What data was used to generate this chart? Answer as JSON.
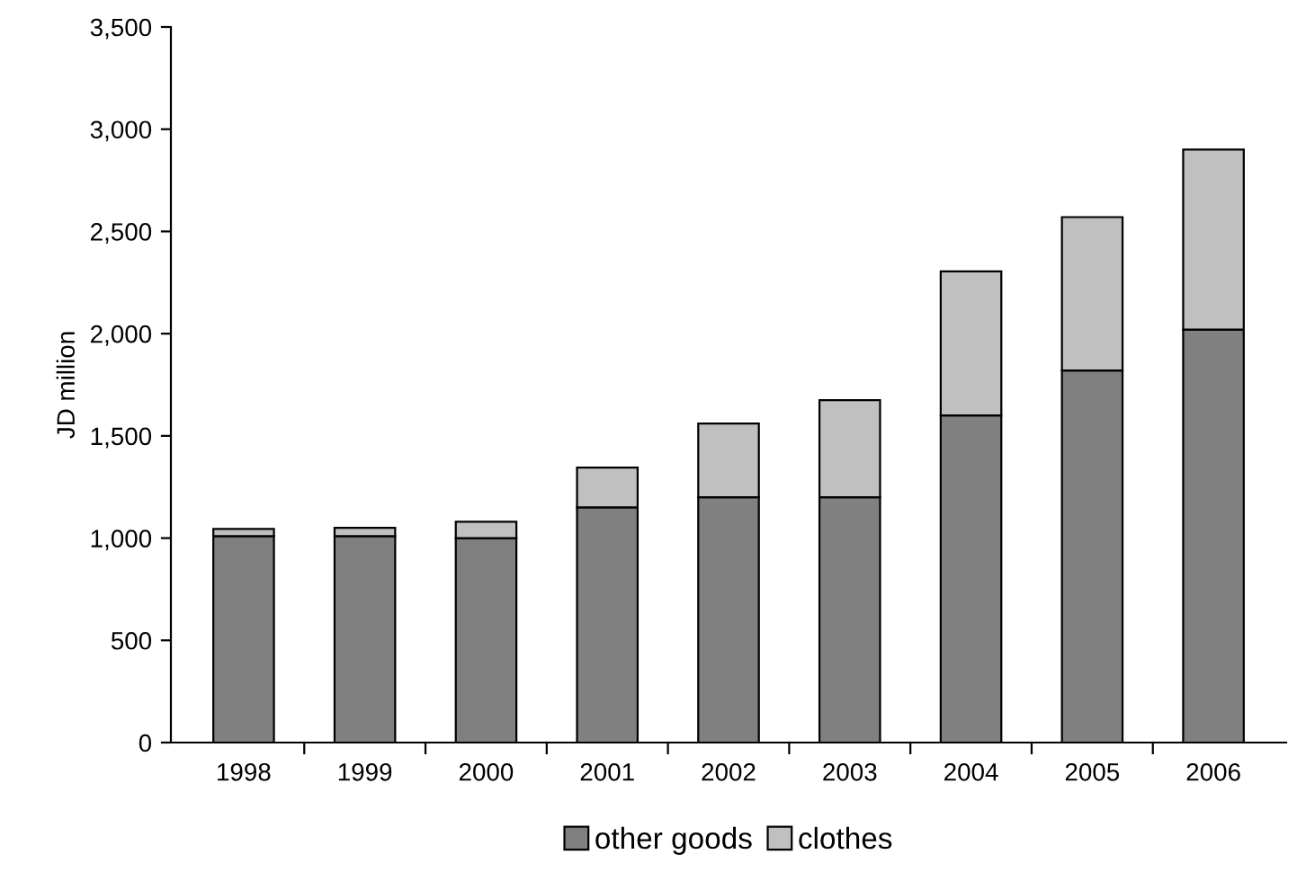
{
  "chart_data": {
    "type": "bar",
    "stacked": true,
    "ylabel": "JD million",
    "categories": [
      "1998",
      "1999",
      "2000",
      "2001",
      "2002",
      "2003",
      "2004",
      "2005",
      "2006"
    ],
    "series": [
      {
        "name": "other goods",
        "color": "#808080",
        "values": [
          1010,
          1010,
          1000,
          1150,
          1200,
          1200,
          1600,
          1820,
          2020
        ]
      },
      {
        "name": "clothes",
        "color": "#c0c0c0",
        "values": [
          35,
          40,
          80,
          195,
          360,
          475,
          705,
          750,
          880
        ]
      }
    ],
    "ylim": [
      0,
      3500
    ],
    "yticks": [
      0,
      500,
      {
        "value": 1000,
        "label": "1,000"
      },
      {
        "value": 1500,
        "label": "1,500"
      },
      {
        "value": 2000,
        "label": "2,000"
      },
      {
        "value": 2500,
        "label": "2,500"
      },
      {
        "value": 3000,
        "label": "3,000"
      },
      {
        "value": 3500,
        "label": "3,500"
      }
    ],
    "grid": false,
    "legend": "bottom"
  }
}
